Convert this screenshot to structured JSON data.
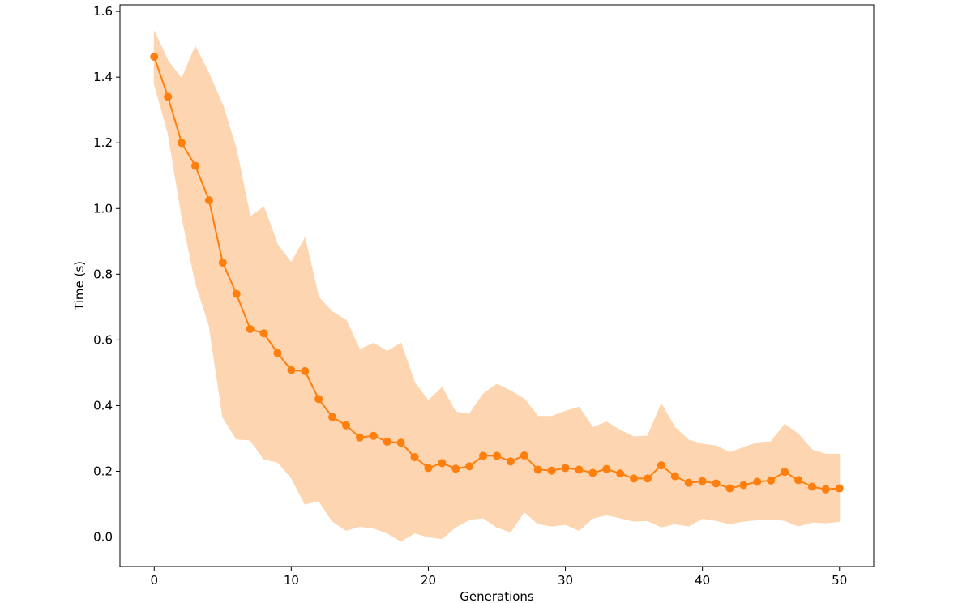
{
  "chart_data": {
    "type": "line",
    "title": "",
    "xlabel": "Generations",
    "ylabel": "Time (s)",
    "xlim": [
      -2.5,
      52.5
    ],
    "ylim": [
      -0.09,
      1.62
    ],
    "xticks": [
      0,
      10,
      20,
      30,
      40,
      50
    ],
    "xtick_labels": [
      "0",
      "10",
      "20",
      "30",
      "40",
      "50"
    ],
    "yticks": [
      0.0,
      0.2,
      0.4,
      0.6,
      0.8,
      1.0,
      1.2,
      1.4,
      1.6
    ],
    "ytick_labels": [
      "0.0",
      "0.2",
      "0.4",
      "0.6",
      "0.8",
      "1.0",
      "1.2",
      "1.4",
      "1.6"
    ],
    "grid": false,
    "colors": {
      "line": "#ff7f0e",
      "band": "#fdd5b0"
    },
    "series": [
      {
        "x": [
          0,
          1,
          2,
          3,
          4,
          5,
          6,
          7,
          8,
          9,
          10,
          11,
          12,
          13,
          14,
          15,
          16,
          17,
          18,
          19,
          20,
          21,
          22,
          23,
          24,
          25,
          26,
          27,
          28,
          29,
          30,
          31,
          32,
          33,
          34,
          35,
          36,
          37,
          38,
          39,
          40,
          41,
          42,
          43,
          44,
          45,
          46,
          47,
          48,
          49,
          50
        ],
        "values": [
          1.462,
          1.34,
          1.2,
          1.13,
          1.025,
          0.835,
          0.74,
          0.633,
          0.62,
          0.56,
          0.508,
          0.505,
          0.42,
          0.365,
          0.34,
          0.303,
          0.308,
          0.29,
          0.287,
          0.243,
          0.21,
          0.225,
          0.208,
          0.215,
          0.247,
          0.247,
          0.23,
          0.248,
          0.205,
          0.202,
          0.21,
          0.205,
          0.195,
          0.207,
          0.193,
          0.178,
          0.178,
          0.218,
          0.185,
          0.165,
          0.17,
          0.163,
          0.148,
          0.158,
          0.168,
          0.172,
          0.198,
          0.173,
          0.153,
          0.145,
          0.148
        ],
        "upper": [
          1.54,
          1.45,
          1.395,
          1.493,
          1.41,
          1.315,
          1.18,
          0.975,
          1.005,
          0.89,
          0.835,
          0.91,
          0.73,
          0.685,
          0.66,
          0.57,
          0.59,
          0.565,
          0.59,
          0.47,
          0.415,
          0.455,
          0.38,
          0.375,
          0.435,
          0.465,
          0.445,
          0.42,
          0.367,
          0.367,
          0.383,
          0.395,
          0.333,
          0.35,
          0.325,
          0.305,
          0.307,
          0.405,
          0.333,
          0.295,
          0.283,
          0.277,
          0.257,
          0.272,
          0.287,
          0.29,
          0.343,
          0.313,
          0.265,
          0.252,
          0.252
        ],
        "lower": [
          1.38,
          1.23,
          0.98,
          0.775,
          0.645,
          0.365,
          0.298,
          0.295,
          0.237,
          0.228,
          0.18,
          0.1,
          0.11,
          0.048,
          0.02,
          0.032,
          0.027,
          0.012,
          -0.013,
          0.012,
          0.0,
          -0.005,
          0.03,
          0.053,
          0.058,
          0.03,
          0.015,
          0.077,
          0.04,
          0.033,
          0.038,
          0.02,
          0.057,
          0.067,
          0.058,
          0.048,
          0.05,
          0.03,
          0.04,
          0.033,
          0.057,
          0.05,
          0.04,
          0.048,
          0.052,
          0.055,
          0.05,
          0.033,
          0.045,
          0.043,
          0.047
        ]
      }
    ]
  }
}
